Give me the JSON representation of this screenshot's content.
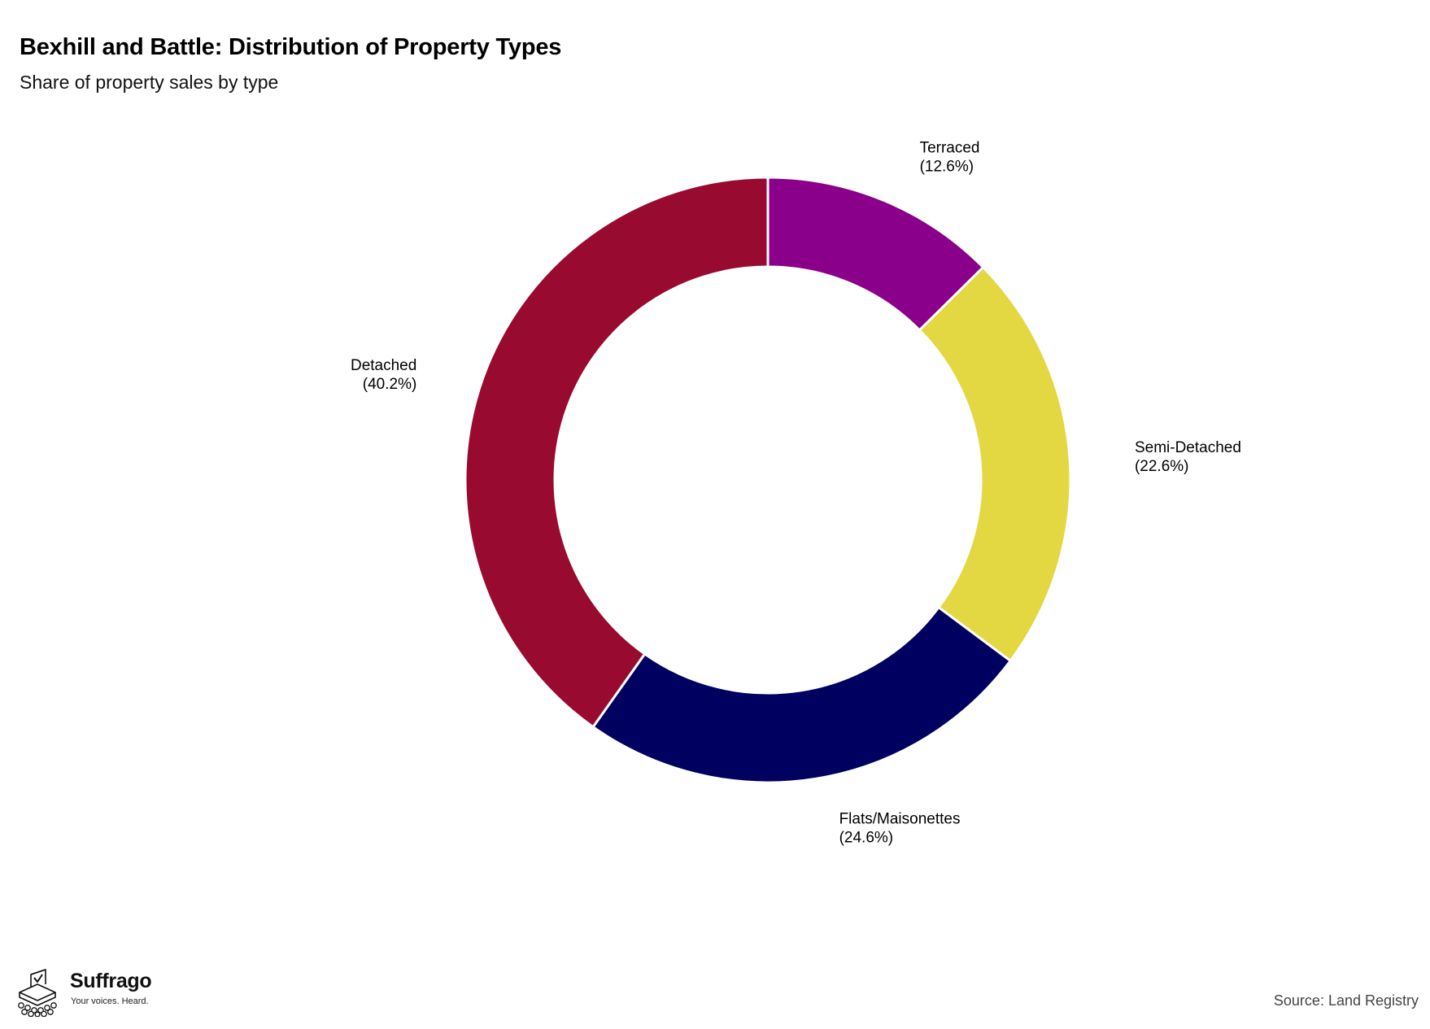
{
  "chart_data": {
    "type": "pie",
    "style": "donut",
    "title": "Bexhill and Battle: Distribution of Property Types",
    "subtitle": "Share of property sales by type",
    "slices": [
      {
        "name": "Terraced",
        "value": 12.6,
        "label": "(12.6%)",
        "color": "#8b008b"
      },
      {
        "name": "Semi-Detached",
        "value": 22.6,
        "label": "(22.6%)",
        "color": "#e3d842"
      },
      {
        "name": "Flats/Maisonettes",
        "value": 24.6,
        "label": "(24.6%)",
        "color": "#000060"
      },
      {
        "name": "Detached",
        "value": 40.2,
        "label": "(40.2%)",
        "color": "#990a30"
      }
    ],
    "start": "12 o'clock",
    "direction": "clockwise"
  },
  "branding": {
    "name": "Suffrago",
    "tagline": "Your voices. Heard."
  },
  "source": "Source: Land Registry"
}
